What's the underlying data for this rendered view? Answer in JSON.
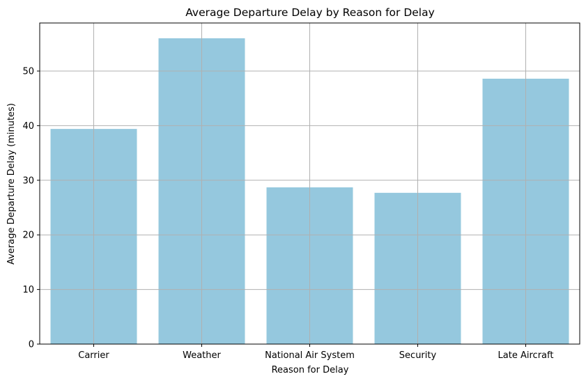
{
  "chart_data": {
    "type": "bar",
    "title": "Average Departure Delay by Reason for Delay",
    "xlabel": "Reason for Delay",
    "ylabel": "Average Departure Delay (minutes)",
    "categories": [
      "Carrier",
      "Weather",
      "National Air System",
      "Security",
      "Late Aircraft"
    ],
    "values": [
      39.4,
      56.0,
      28.7,
      27.7,
      48.6
    ],
    "ylim": [
      0,
      58.8
    ],
    "yticks": [
      0,
      10,
      20,
      30,
      40,
      50
    ],
    "grid": true,
    "bar_color": "#95c8de",
    "grid_color": "#b0b0b0"
  }
}
